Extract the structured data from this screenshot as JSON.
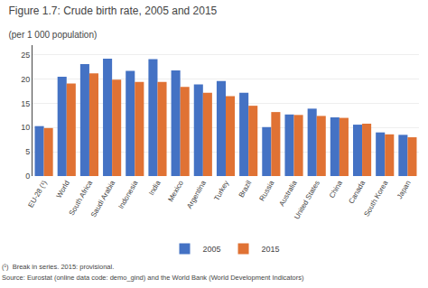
{
  "chart_data": {
    "type": "bar",
    "title": "Figure 1.7: Crude birth rate, 2005 and 2015",
    "subtitle": "(per 1 000 population)",
    "categories": [
      "EU-28 (¹)",
      "World",
      "South Africa",
      "Saudi Arabia",
      "Indonesia",
      "India",
      "Mexico",
      "Argentina",
      "Turkey",
      "Brazil",
      "Russia",
      "Australia",
      "United States",
      "China",
      "Canada",
      "South Korea",
      "Japan"
    ],
    "series": [
      {
        "name": "2005",
        "color": "#4472C4",
        "values": [
          10.3,
          20.5,
          23.1,
          24.2,
          21.7,
          24.1,
          21.8,
          18.9,
          19.6,
          17.2,
          10.1,
          12.7,
          13.9,
          12.1,
          10.6,
          9.0,
          8.5
        ]
      },
      {
        "name": "2015",
        "color": "#E07234",
        "values": [
          9.9,
          19.1,
          21.2,
          19.9,
          19.4,
          19.4,
          18.4,
          17.2,
          16.5,
          14.5,
          13.2,
          12.6,
          12.4,
          12.0,
          10.8,
          8.6,
          8.0
        ]
      }
    ],
    "ylim": [
      0,
      27
    ],
    "yticks": [
      0,
      5,
      10,
      15,
      20,
      25
    ],
    "grid": true,
    "legend": "bottom",
    "annotations": [
      "(¹)  Break in series. 2015: provisional.",
      "Source: Eurostat (online data code: demo_gind) and the World Bank (World Development Indicators)"
    ]
  }
}
